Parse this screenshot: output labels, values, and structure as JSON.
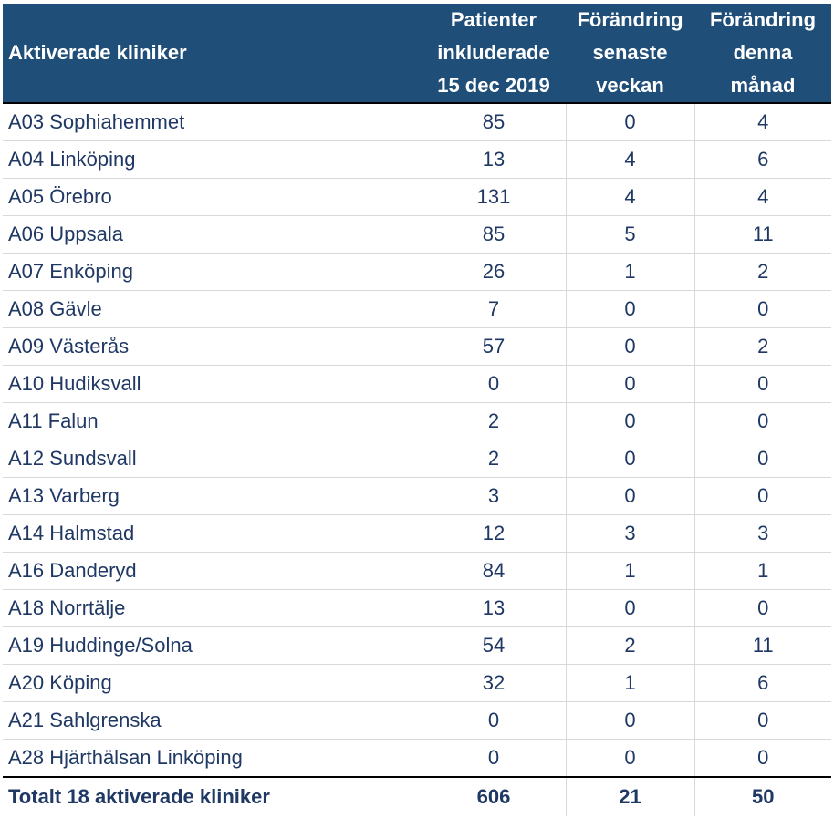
{
  "header": {
    "col1": "Aktiverade kliniker",
    "col2_line1": "Patienter",
    "col2_line2": "inkluderade",
    "col2_line3": "15 dec 2019",
    "col3_line1": "Förändring",
    "col3_line2": "senaste",
    "col3_line3": "veckan",
    "col4_line1": "Förändring",
    "col4_line2": "denna",
    "col4_line3": "månad"
  },
  "rows": [
    {
      "clinic": "A03 Sophiahemmet",
      "patients": "85",
      "week": "0",
      "month": "4"
    },
    {
      "clinic": "A04 Linköping",
      "patients": "13",
      "week": "4",
      "month": "6"
    },
    {
      "clinic": "A05 Örebro",
      "patients": "131",
      "week": "4",
      "month": "4"
    },
    {
      "clinic": "A06 Uppsala",
      "patients": "85",
      "week": "5",
      "month": "11"
    },
    {
      "clinic": "A07 Enköping",
      "patients": "26",
      "week": "1",
      "month": "2"
    },
    {
      "clinic": "A08 Gävle",
      "patients": "7",
      "week": "0",
      "month": "0"
    },
    {
      "clinic": "A09 Västerås",
      "patients": "57",
      "week": "0",
      "month": "2"
    },
    {
      "clinic": "A10 Hudiksvall",
      "patients": "0",
      "week": "0",
      "month": "0"
    },
    {
      "clinic": "A11 Falun",
      "patients": "2",
      "week": "0",
      "month": "0"
    },
    {
      "clinic": "A12 Sundsvall",
      "patients": "2",
      "week": "0",
      "month": "0"
    },
    {
      "clinic": "A13 Varberg",
      "patients": "3",
      "week": "0",
      "month": "0"
    },
    {
      "clinic": "A14 Halmstad",
      "patients": "12",
      "week": "3",
      "month": "3"
    },
    {
      "clinic": "A16 Danderyd",
      "patients": "84",
      "week": "1",
      "month": "1"
    },
    {
      "clinic": "A18 Norrtälje",
      "patients": "13",
      "week": "0",
      "month": "0"
    },
    {
      "clinic": "A19 Huddinge/Solna",
      "patients": "54",
      "week": "2",
      "month": "11"
    },
    {
      "clinic": "A20 Köping",
      "patients": "32",
      "week": "1",
      "month": "6"
    },
    {
      "clinic": "A21 Sahlgrenska",
      "patients": "0",
      "week": "0",
      "month": "0"
    },
    {
      "clinic": "A28 Hjärthälsan Linköping",
      "patients": "0",
      "week": "0",
      "month": "0"
    }
  ],
  "total": {
    "label": "Totalt 18 aktiverade kliniker",
    "patients": "606",
    "week": "21",
    "month": "50"
  }
}
